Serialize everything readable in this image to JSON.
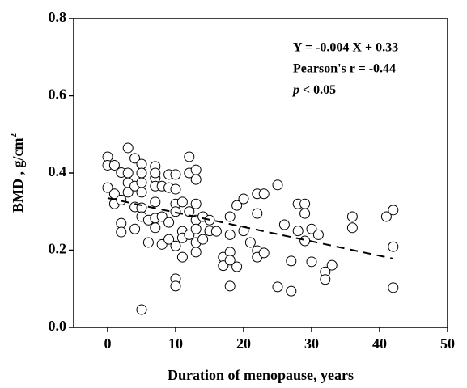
{
  "chart_data": {
    "type": "scatter",
    "x_label": "Duration of menopause, years",
    "y_label": "BMD , g/cm",
    "y_label_sup": "2",
    "annotations": [
      "Y = -0.004 X + 0.33",
      "Pearson's r = -0.44"
    ],
    "p_value": {
      "symbol": "p",
      "text": "< 0.05"
    },
    "xlim": [
      -5,
      50
    ],
    "xticks": [
      0,
      10,
      20,
      30,
      40,
      50
    ],
    "ylim": [
      0,
      0.8
    ],
    "yticks": [
      {
        "value": 0,
        "label": "0.0"
      },
      0.2,
      0.4,
      0.6,
      0.8
    ],
    "color": "#000000",
    "x": [
      0,
      0,
      0,
      1,
      1,
      1,
      2,
      2,
      2,
      2,
      3,
      3,
      3,
      3,
      4,
      4,
      4,
      5,
      5,
      5,
      5,
      5,
      5,
      5,
      4,
      6,
      6,
      7,
      7,
      7,
      7,
      7,
      7,
      7,
      8,
      8,
      8,
      9,
      9,
      9,
      9,
      10,
      10,
      10,
      10,
      10,
      10,
      10,
      11,
      11,
      11,
      11,
      12,
      12,
      12,
      12,
      13,
      13,
      13,
      13,
      13,
      13,
      13,
      14,
      14,
      15,
      15,
      16,
      17,
      17,
      18,
      18,
      18,
      18,
      18,
      19,
      19,
      20,
      20,
      21,
      22,
      22,
      22,
      22,
      23,
      23,
      25,
      25,
      26,
      27,
      27,
      28,
      28,
      29,
      29,
      29,
      30,
      30,
      31,
      32,
      32,
      33,
      36,
      36,
      41,
      42,
      42,
      42
    ],
    "values": [
      0.442,
      0.42,
      0.362,
      0.42,
      0.346,
      0.32,
      0.401,
      0.33,
      0.27,
      0.247,
      0.465,
      0.4,
      0.375,
      0.35,
      0.438,
      0.366,
      0.312,
      0.423,
      0.4,
      0.375,
      0.35,
      0.31,
      0.287,
      0.046,
      0.255,
      0.278,
      0.22,
      0.387,
      0.366,
      0.325,
      0.283,
      0.258,
      0.417,
      0.4,
      0.366,
      0.287,
      0.215,
      0.396,
      0.362,
      0.272,
      0.228,
      0.396,
      0.358,
      0.32,
      0.3,
      0.211,
      0.126,
      0.107,
      0.249,
      0.232,
      0.182,
      0.325,
      0.442,
      0.4,
      0.3,
      0.24,
      0.408,
      0.383,
      0.32,
      0.278,
      0.255,
      0.22,
      0.195,
      0.287,
      0.228,
      0.278,
      0.25,
      0.249,
      0.182,
      0.16,
      0.287,
      0.24,
      0.195,
      0.174,
      0.107,
      0.157,
      0.316,
      0.333,
      0.25,
      0.22,
      0.295,
      0.346,
      0.199,
      0.182,
      0.346,
      0.193,
      0.369,
      0.105,
      0.266,
      0.172,
      0.094,
      0.32,
      0.25,
      0.32,
      0.295,
      0.224,
      0.255,
      0.17,
      0.24,
      0.144,
      0.124,
      0.161,
      0.287,
      0.258,
      0.287,
      0.304,
      0.209,
      0.103
    ],
    "fit": {
      "x": [
        0,
        42
      ],
      "values": [
        0.335,
        0.178
      ]
    }
  }
}
